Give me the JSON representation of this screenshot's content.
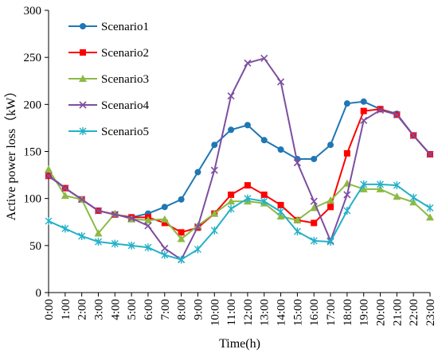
{
  "chart_data": {
    "type": "line",
    "title": "",
    "xlabel": "Time(h)",
    "ylabel": "Active power loss（kW）",
    "ylim": [
      0,
      300
    ],
    "yticks": [
      0,
      50,
      100,
      150,
      200,
      250,
      300
    ],
    "grid": false,
    "legend_position": "top-left",
    "x": [
      "0:00",
      "1:00",
      "2:00",
      "3:00",
      "4:00",
      "5:00",
      "6:00",
      "7:00",
      "8:00",
      "9:00",
      "10:00",
      "11:00",
      "12:00",
      "13:00",
      "14:00",
      "15:00",
      "16:00",
      "17:00",
      "18:00",
      "19:00",
      "20:00",
      "21:00",
      "22:00",
      "23:00"
    ],
    "series": [
      {
        "name": "Scenario1",
        "color": "#1f77b4",
        "marker": "circle",
        "values": [
          125,
          111,
          99,
          87,
          83,
          80,
          84,
          91,
          99,
          128,
          157,
          173,
          178,
          162,
          152,
          142,
          142,
          157,
          201,
          203,
          195,
          190,
          167,
          147
        ]
      },
      {
        "name": "Scenario2",
        "color": "#ff0000",
        "marker": "square",
        "values": [
          124,
          111,
          99,
          87,
          83,
          80,
          80,
          74,
          64,
          69,
          84,
          104,
          114,
          104,
          93,
          77,
          74,
          91,
          148,
          193,
          195,
          189,
          167,
          147
        ]
      },
      {
        "name": "Scenario3",
        "color": "#8dba43",
        "marker": "triangle",
        "values": [
          131,
          103,
          99,
          63,
          84,
          78,
          77,
          78,
          57,
          71,
          84,
          97,
          97,
          95,
          81,
          77,
          90,
          98,
          116,
          110,
          110,
          102,
          96,
          80
        ]
      },
      {
        "name": "Scenario4",
        "color": "#7d4ea0",
        "marker": "x",
        "values": [
          124,
          111,
          99,
          87,
          83,
          79,
          71,
          47,
          35,
          70,
          130,
          209,
          244,
          249,
          224,
          138,
          97,
          55,
          104,
          183,
          194,
          189,
          167,
          147
        ]
      },
      {
        "name": "Scenario5",
        "color": "#23b1c8",
        "marker": "asterisk",
        "values": [
          76,
          68,
          60,
          54,
          52,
          50,
          48,
          40,
          35,
          46,
          66,
          89,
          100,
          97,
          86,
          65,
          55,
          54,
          87,
          115,
          115,
          114,
          101,
          90
        ]
      }
    ]
  }
}
